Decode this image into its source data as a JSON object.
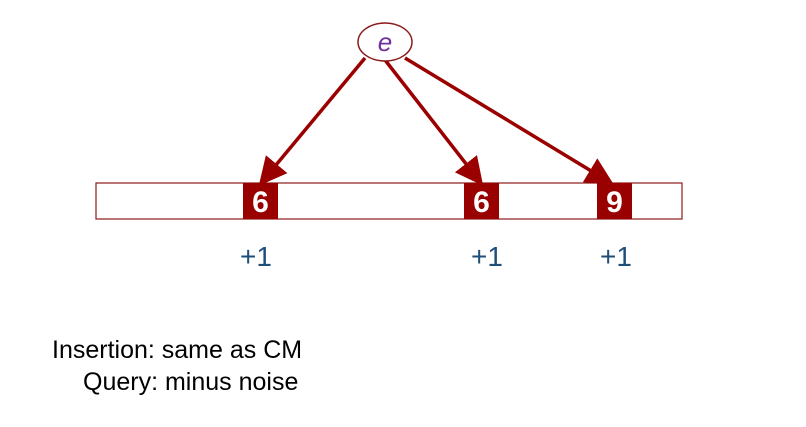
{
  "diagram": {
    "element": {
      "label": "e"
    },
    "array": {
      "cells": [
        {
          "value": "6",
          "increment": "+1"
        },
        {
          "value": "6",
          "increment": "+1"
        },
        {
          "value": "9",
          "increment": "+1"
        }
      ]
    },
    "colors": {
      "arrow": "#9b0000",
      "cell_fill": "#990000",
      "cell_text": "#ffffff",
      "array_border": "#8b1a1a",
      "element_label": "#7030a0",
      "increment_text": "#1f4e79"
    }
  },
  "caption": {
    "line1": "Insertion: same as CM",
    "line2": "Query: minus noise"
  }
}
